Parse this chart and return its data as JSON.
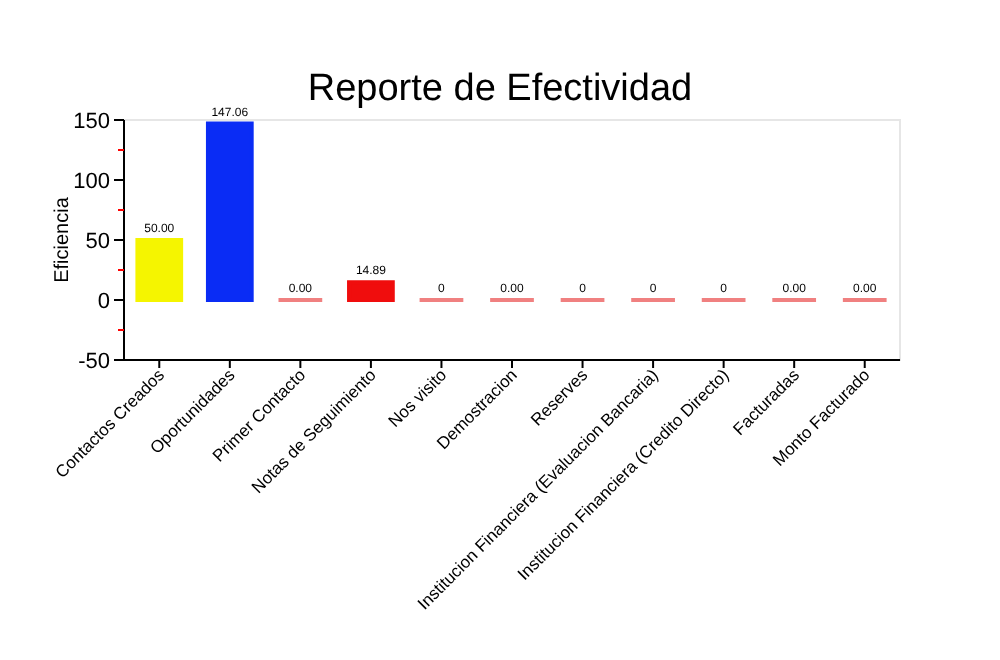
{
  "chart_data": {
    "type": "bar",
    "title": "Reporte de Efectividad",
    "ylabel": "Eficiencia",
    "categories": [
      "Contactos Creados",
      "Oportunidades",
      "Primer Contacto",
      "Notas de Seguimiento",
      "Nos visito",
      "Demostracion",
      "Reserves",
      "Institucion Financiera (Evaluacion Bancaria)",
      "Institucion Financiera (Credito Directo)",
      "Facturadas",
      "Monto Facturado"
    ],
    "values": [
      50,
      147.06,
      0,
      14.89,
      0,
      0,
      0,
      0,
      0,
      0,
      0
    ],
    "colors": [
      "#f5f500",
      "#0a2cf5",
      "#f08080",
      "#f00d0d",
      "#f08080",
      "#f08080",
      "#f08080",
      "#f08080",
      "#f08080",
      "#f08080",
      "#f08080"
    ],
    "value_labels": [
      "50.00",
      "147.06",
      "0.00",
      "14.89",
      "0",
      "0.00",
      "0",
      "0",
      "0",
      "0.00",
      "0.00"
    ],
    "ylim": [
      -50,
      150
    ],
    "yticks": [
      -50,
      {
        "value": -25,
        "label": null
      },
      0,
      {
        "value": 25,
        "label": null
      },
      50,
      {
        "value": 75,
        "label": null
      },
      100,
      {
        "value": 125,
        "label": null
      },
      150
    ],
    "grid": false
  }
}
